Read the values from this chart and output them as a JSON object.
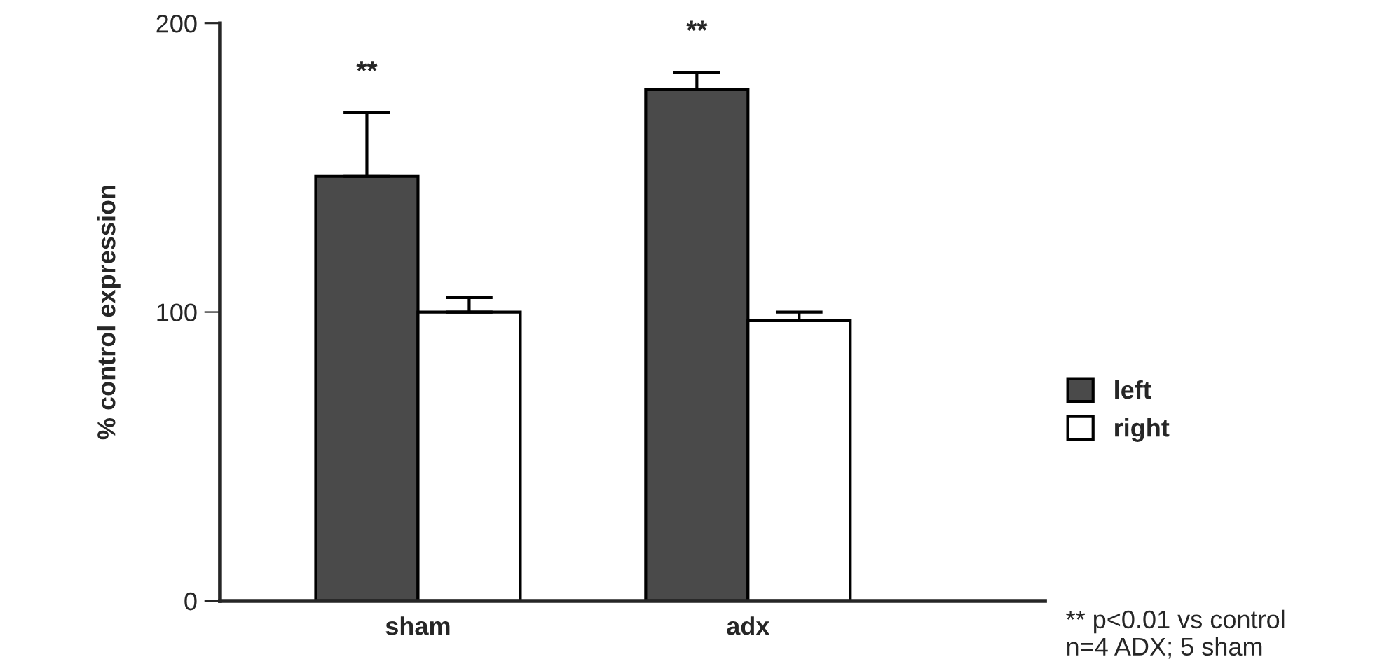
{
  "chart_data": {
    "type": "bar",
    "ylabel": "% control expression",
    "categories": [
      "sham",
      "adx"
    ],
    "series": [
      {
        "name": "left",
        "color": "#4a4a4a",
        "values": [
          147,
          177
        ],
        "errors": [
          22,
          6
        ]
      },
      {
        "name": "right",
        "color": "#ffffff",
        "values": [
          100,
          97
        ],
        "errors": [
          5,
          3
        ]
      }
    ],
    "ylim": [
      0,
      200
    ],
    "yticks": [
      0,
      100,
      200
    ],
    "grid": false,
    "legend": "right",
    "annotations": [
      "**",
      "**",
      "** p<0.01 vs control\nn=4 ADX; 5 sham"
    ]
  }
}
